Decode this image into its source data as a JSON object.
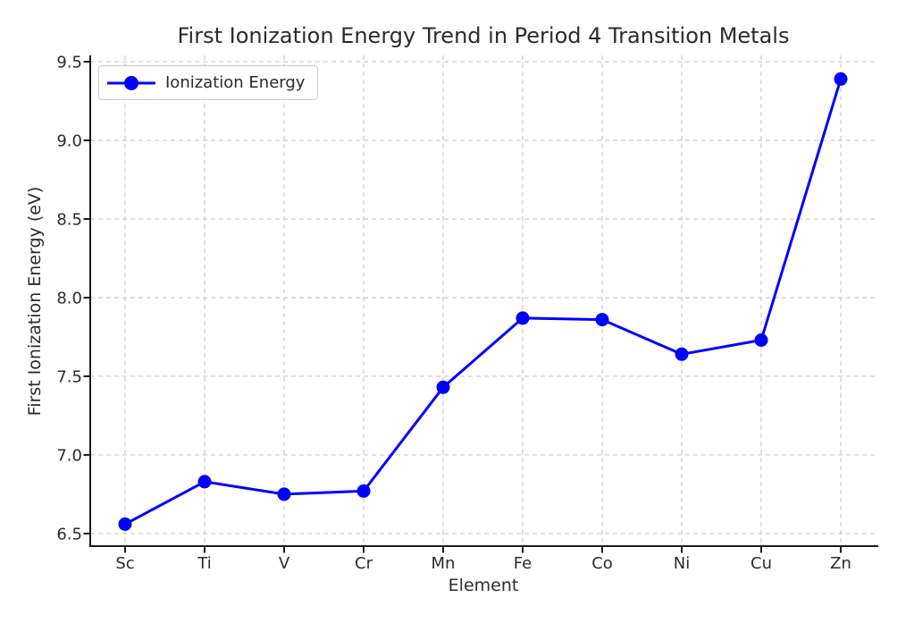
{
  "chart_data": {
    "type": "line",
    "title": "First Ionization Energy Trend in Period 4 Transition Metals",
    "xlabel": "Element",
    "ylabel": "First Ionization Energy (eV)",
    "categories": [
      "Sc",
      "Ti",
      "V",
      "Cr",
      "Mn",
      "Fe",
      "Co",
      "Ni",
      "Cu",
      "Zn"
    ],
    "series": [
      {
        "name": "Ionization Energy",
        "values": [
          6.56,
          6.83,
          6.75,
          6.77,
          7.43,
          7.87,
          7.86,
          7.64,
          7.73,
          9.39
        ],
        "color": "#0000ff",
        "marker": "circle"
      }
    ],
    "ylim": [
      6.42,
      9.54
    ],
    "yticks": [
      6.5,
      7.0,
      7.5,
      8.0,
      8.5,
      9.0,
      9.5
    ],
    "ytick_labels": [
      "6.5",
      "7.0",
      "7.5",
      "8.0",
      "8.5",
      "9.0",
      "9.5"
    ],
    "grid": true,
    "grid_style": "dashed",
    "legend": {
      "position": "upper left",
      "entries": [
        "Ionization Energy"
      ]
    },
    "colors": {
      "line": "#0000ff",
      "grid": "#cccccc",
      "text": "#2b2b2b",
      "axis": "#1a1a1a",
      "background": "#ffffff"
    }
  }
}
